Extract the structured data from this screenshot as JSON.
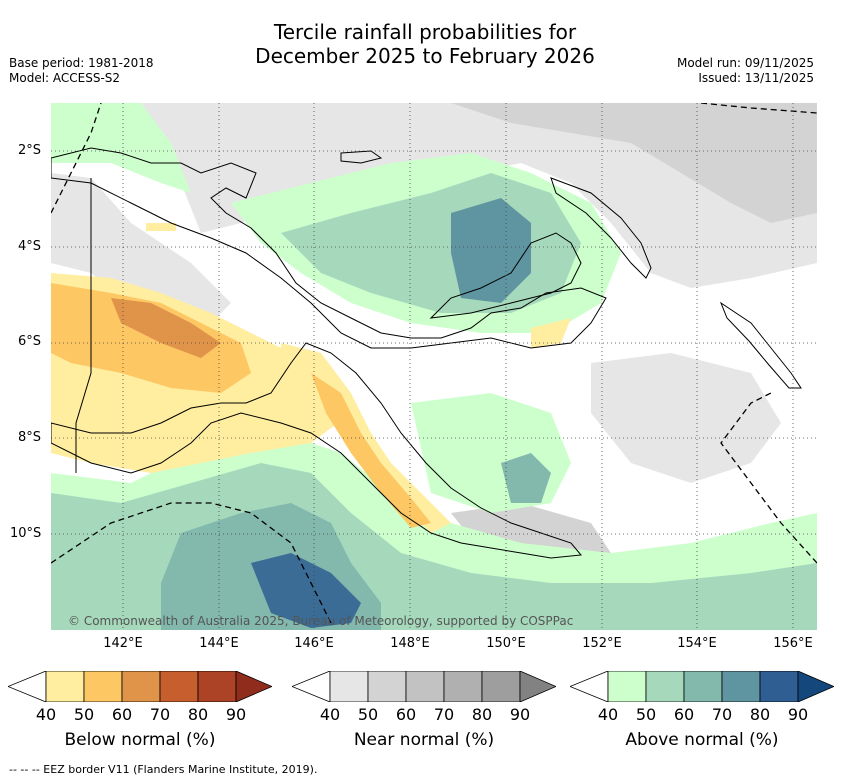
{
  "title": {
    "line1": "Tercile rainfall probabilities for",
    "line2": "December 2025 to February 2026"
  },
  "meta": {
    "base_period": "Base period: 1981-2018",
    "model": "Model: ACCESS-S2",
    "model_run": "Model run: 09/11/2025",
    "issued": "Issued: 13/11/2025"
  },
  "map": {
    "lat_labels": [
      "2°S",
      "4°S",
      "6°S",
      "8°S",
      "10°S"
    ],
    "lon_labels": [
      "142°E",
      "144°E",
      "146°E",
      "148°E",
      "150°E",
      "152°E",
      "154°E",
      "156°E"
    ],
    "copyright": "© Commonwealth of Australia 2025, Bureau of Meteorology, supported by COSPPac"
  },
  "legends": [
    {
      "title": "Below normal (%)",
      "ticks": [
        "40",
        "50",
        "60",
        "70",
        "80",
        "90"
      ],
      "colors": [
        "#ffeda0",
        "#fdc863",
        "#e0944a",
        "#c65e2e",
        "#ac4326",
        "#8f2c1b"
      ]
    },
    {
      "title": "Near normal (%)",
      "ticks": [
        "40",
        "50",
        "60",
        "70",
        "80",
        "90"
      ],
      "colors": [
        "#e6e6e6",
        "#d3d3d3",
        "#c2c2c2",
        "#b0b0b0",
        "#9e9e9e",
        "#828282"
      ]
    },
    {
      "title": "Above normal (%)",
      "ticks": [
        "40",
        "50",
        "60",
        "70",
        "80",
        "90"
      ],
      "colors": [
        "#ccffcc",
        "#a6d9bc",
        "#83b8ad",
        "#5f95a0",
        "#2e5e92",
        "#14487c"
      ]
    }
  ],
  "footnote": "--  --  -- EEZ border V11 (Flanders Marine Institute, 2019)."
}
